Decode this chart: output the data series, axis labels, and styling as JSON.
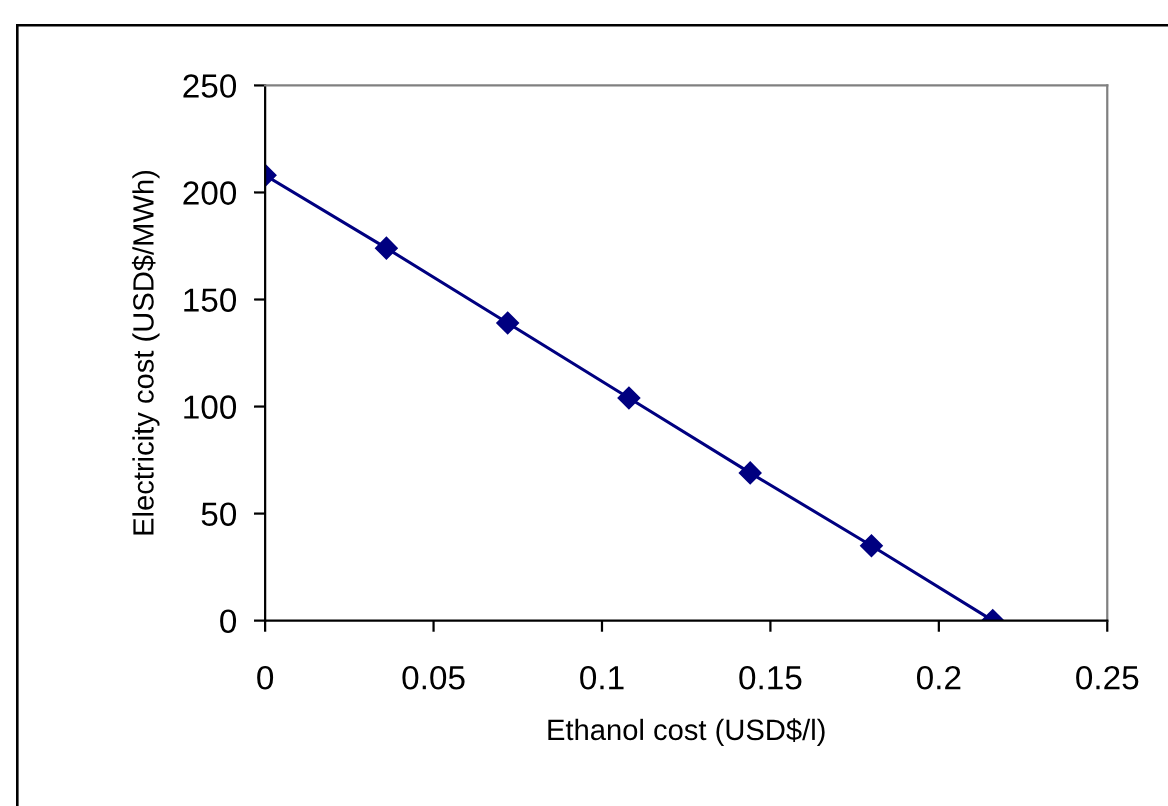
{
  "chart_data": {
    "type": "line",
    "xlabel": "Ethanol cost (USD$/l)",
    "ylabel": "Electricity cost (USD$/MWh)",
    "x": [
      0,
      0.036,
      0.072,
      0.108,
      0.144,
      0.18,
      0.216
    ],
    "series": [
      {
        "color": "#000080",
        "values": [
          208,
          174,
          139,
          104,
          69,
          35,
          0
        ]
      }
    ],
    "xlim": [
      0,
      0.25
    ],
    "xticks": [
      0,
      0.05,
      0.1,
      0.15,
      0.2,
      0.25
    ],
    "ylim": [
      0,
      250
    ],
    "yticks": [
      0,
      50,
      100,
      150,
      200,
      250
    ],
    "marker": "diamond",
    "line_style": "solid",
    "grid": false,
    "legend": false
  }
}
